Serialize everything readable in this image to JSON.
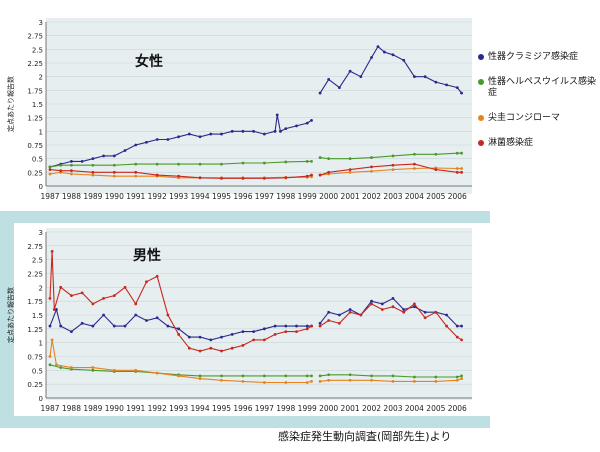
{
  "colors": {
    "chlamydia": "#2a2a8c",
    "herpes": "#4a9a2a",
    "condyloma": "#e8821e",
    "gonorrhea": "#c8281e",
    "panel_bg": "#e6eef0",
    "strip_bg": "#bfe0e3"
  },
  "legend": [
    {
      "key": "chlamydia",
      "label": "性器クラミジア感染症"
    },
    {
      "key": "herpes",
      "label": "性器ヘルペスウイルス感染症"
    },
    {
      "key": "condyloma",
      "label": "尖圭コンジローマ"
    },
    {
      "key": "gonorrhea",
      "label": "淋菌感染症"
    }
  ],
  "credit": "感染症発生動向調査(岡部先生)より",
  "chart_data": [
    {
      "type": "line",
      "title": "女性",
      "ylabel": "定点あたり報告数",
      "ylim": [
        0,
        3
      ],
      "yticks": [
        "0",
        "0.25",
        "0.5",
        "0.75",
        "1",
        "1.25",
        "1.5",
        "1.75",
        "2",
        "2.25",
        "2.5",
        "2.75",
        "3"
      ],
      "xlim": [
        1987,
        2006.5
      ],
      "xticks": [
        "1987",
        "1988",
        "1989",
        "1990",
        "1991",
        "1992",
        "1993",
        "1994",
        "1995",
        "1996",
        "1997",
        "1998",
        "1999",
        "2000",
        "2001",
        "2002",
        "2003",
        "2004",
        "2005",
        "2006"
      ],
      "series": [
        {
          "key": "chlamydia",
          "name": "性器クラミジア感染症",
          "x": [
            1987,
            1987.5,
            1988,
            1988.5,
            1989,
            1989.5,
            1990,
            1990.5,
            1991,
            1991.5,
            1992,
            1992.5,
            1993,
            1993.5,
            1994,
            1994.5,
            1995,
            1995.5,
            1996,
            1996.5,
            1997,
            1997.5,
            1997.6,
            1997.75,
            1998,
            1998.5,
            1999,
            1999.2,
            null,
            1999.6,
            2000,
            2000.5,
            2001,
            2001.5,
            2002,
            2002.3,
            2002.6,
            2003,
            2003.5,
            2004,
            2004.5,
            2005,
            2005.5,
            2006,
            2006.2
          ],
          "y": [
            0.35,
            0.4,
            0.45,
            0.45,
            0.5,
            0.55,
            0.55,
            0.65,
            0.75,
            0.8,
            0.85,
            0.85,
            0.9,
            0.95,
            0.9,
            0.95,
            0.95,
            1.0,
            1.0,
            1.0,
            0.95,
            1.0,
            1.3,
            1.0,
            1.05,
            1.1,
            1.15,
            1.2,
            null,
            1.7,
            1.95,
            1.8,
            2.1,
            2.0,
            2.35,
            2.55,
            2.45,
            2.4,
            2.3,
            2.0,
            2.0,
            1.9,
            1.85,
            1.8,
            1.7
          ]
        },
        {
          "key": "herpes",
          "name": "性器ヘルペスウイルス感染症",
          "x": [
            1987,
            1987.5,
            1988,
            1989,
            1990,
            1991,
            1992,
            1993,
            1994,
            1995,
            1996,
            1997,
            1998,
            1999,
            1999.2,
            null,
            1999.6,
            2000,
            2001,
            2002,
            2003,
            2004,
            2005,
            2006,
            2006.2
          ],
          "y": [
            0.35,
            0.38,
            0.38,
            0.38,
            0.38,
            0.4,
            0.4,
            0.4,
            0.4,
            0.4,
            0.42,
            0.42,
            0.44,
            0.45,
            0.45,
            null,
            0.52,
            0.5,
            0.5,
            0.52,
            0.55,
            0.58,
            0.58,
            0.6,
            0.6
          ]
        },
        {
          "key": "condyloma",
          "name": "尖圭コンジローマ",
          "x": [
            1987,
            1987.5,
            1988,
            1989,
            1990,
            1991,
            1992,
            1993,
            1994,
            1995,
            1996,
            1997,
            1998,
            1999,
            1999.2,
            null,
            1999.6,
            2000,
            2001,
            2002,
            2003,
            2004,
            2005,
            2006,
            2006.2
          ],
          "y": [
            0.22,
            0.25,
            0.22,
            0.2,
            0.18,
            0.18,
            0.18,
            0.15,
            0.15,
            0.15,
            0.15,
            0.15,
            0.16,
            0.16,
            0.17,
            null,
            0.2,
            0.22,
            0.25,
            0.27,
            0.3,
            0.32,
            0.33,
            0.32,
            0.32
          ]
        },
        {
          "key": "gonorrhea",
          "name": "淋菌感染症",
          "x": [
            1987,
            1987.5,
            1988,
            1989,
            1990,
            1991,
            1992,
            1993,
            1994,
            1995,
            1996,
            1997,
            1998,
            1999,
            1999.2,
            null,
            1999.6,
            2000,
            2001,
            2002,
            2003,
            2004,
            2005,
            2006,
            2006.2
          ],
          "y": [
            0.3,
            0.28,
            0.28,
            0.25,
            0.25,
            0.25,
            0.2,
            0.18,
            0.15,
            0.14,
            0.14,
            0.14,
            0.15,
            0.18,
            0.2,
            null,
            0.2,
            0.25,
            0.3,
            0.35,
            0.38,
            0.4,
            0.3,
            0.25,
            0.25
          ]
        }
      ]
    },
    {
      "type": "line",
      "title": "男性",
      "ylabel": "定点あたり報告数",
      "ylim": [
        0,
        3
      ],
      "yticks": [
        "0",
        "0.25",
        "0.5",
        "0.75",
        "1",
        "1.25",
        "1.5",
        "1.75",
        "2",
        "2.25",
        "2.5",
        "2.75",
        "3"
      ],
      "xlim": [
        1987,
        2006.5
      ],
      "xticks": [
        "1987",
        "1988",
        "1989",
        "1990",
        "1991",
        "1992",
        "1993",
        "1994",
        "1995",
        "1996",
        "1997",
        "1998",
        "1999",
        "2000",
        "2001",
        "2002",
        "2003",
        "2004",
        "2005",
        "2006"
      ],
      "series": [
        {
          "key": "chlamydia",
          "name": "性器クラミジア感染症",
          "x": [
            1987,
            1987.3,
            1987.5,
            1988,
            1988.5,
            1989,
            1989.5,
            1990,
            1990.5,
            1991,
            1991.5,
            1992,
            1992.5,
            1993,
            1993.5,
            1994,
            1994.5,
            1995,
            1995.5,
            1996,
            1996.5,
            1997,
            1997.5,
            1998,
            1998.5,
            1999,
            1999.2,
            null,
            1999.6,
            2000,
            2000.5,
            2001,
            2001.5,
            2002,
            2002.5,
            2003,
            2003.5,
            2004,
            2004.5,
            2005,
            2005.5,
            2006,
            2006.2
          ],
          "y": [
            1.3,
            1.6,
            1.3,
            1.2,
            1.35,
            1.3,
            1.5,
            1.3,
            1.3,
            1.5,
            1.4,
            1.45,
            1.3,
            1.25,
            1.1,
            1.1,
            1.05,
            1.1,
            1.15,
            1.2,
            1.2,
            1.25,
            1.3,
            1.3,
            1.3,
            1.3,
            1.3,
            null,
            1.35,
            1.55,
            1.5,
            1.6,
            1.5,
            1.75,
            1.7,
            1.8,
            1.6,
            1.65,
            1.55,
            1.55,
            1.5,
            1.3,
            1.3
          ]
        },
        {
          "key": "gonorrhea",
          "name": "淋菌感染症",
          "x": [
            1987,
            1987.1,
            1987.2,
            1987.5,
            1988,
            1988.5,
            1989,
            1989.5,
            1990,
            1990.5,
            1991,
            1991.5,
            1992,
            1992.5,
            1993,
            1993.5,
            1994,
            1994.5,
            1995,
            1995.5,
            1996,
            1996.5,
            1997,
            1997.5,
            1998,
            1998.5,
            1999,
            1999.2,
            null,
            1999.6,
            2000,
            2000.5,
            2001,
            2001.5,
            2002,
            2002.5,
            2003,
            2003.5,
            2004,
            2004.5,
            2005,
            2005.5,
            2006,
            2006.2
          ],
          "y": [
            1.8,
            2.65,
            1.6,
            2.0,
            1.85,
            1.9,
            1.7,
            1.8,
            1.85,
            2.0,
            1.7,
            2.1,
            2.2,
            1.5,
            1.15,
            0.9,
            0.85,
            0.9,
            0.85,
            0.9,
            0.95,
            1.05,
            1.05,
            1.15,
            1.2,
            1.2,
            1.25,
            1.3,
            null,
            1.3,
            1.4,
            1.35,
            1.55,
            1.5,
            1.7,
            1.6,
            1.65,
            1.55,
            1.7,
            1.45,
            1.55,
            1.3,
            1.1,
            1.05
          ]
        },
        {
          "key": "herpes",
          "name": "性器ヘルペスウイルス感染症",
          "x": [
            1987,
            1987.5,
            1988,
            1989,
            1990,
            1991,
            1992,
            1993,
            1994,
            1995,
            1996,
            1997,
            1998,
            1999,
            1999.2,
            null,
            1999.6,
            2000,
            2001,
            2002,
            2003,
            2004,
            2005,
            2006,
            2006.2
          ],
          "y": [
            0.6,
            0.55,
            0.52,
            0.5,
            0.48,
            0.48,
            0.45,
            0.42,
            0.4,
            0.4,
            0.4,
            0.4,
            0.4,
            0.4,
            0.4,
            null,
            0.4,
            0.42,
            0.42,
            0.4,
            0.4,
            0.38,
            0.38,
            0.38,
            0.4
          ]
        },
        {
          "key": "condyloma",
          "name": "尖圭コンジローマ",
          "x": [
            1987,
            1987.1,
            1987.3,
            1988,
            1989,
            1990,
            1991,
            1992,
            1993,
            1994,
            1995,
            1996,
            1997,
            1998,
            1999,
            1999.2,
            null,
            1999.6,
            2000,
            2001,
            2002,
            2003,
            2004,
            2005,
            2006,
            2006.2
          ],
          "y": [
            0.75,
            1.05,
            0.6,
            0.55,
            0.55,
            0.5,
            0.5,
            0.45,
            0.4,
            0.35,
            0.32,
            0.3,
            0.28,
            0.28,
            0.28,
            0.3,
            null,
            0.3,
            0.32,
            0.32,
            0.32,
            0.3,
            0.3,
            0.3,
            0.32,
            0.35
          ]
        }
      ]
    }
  ]
}
